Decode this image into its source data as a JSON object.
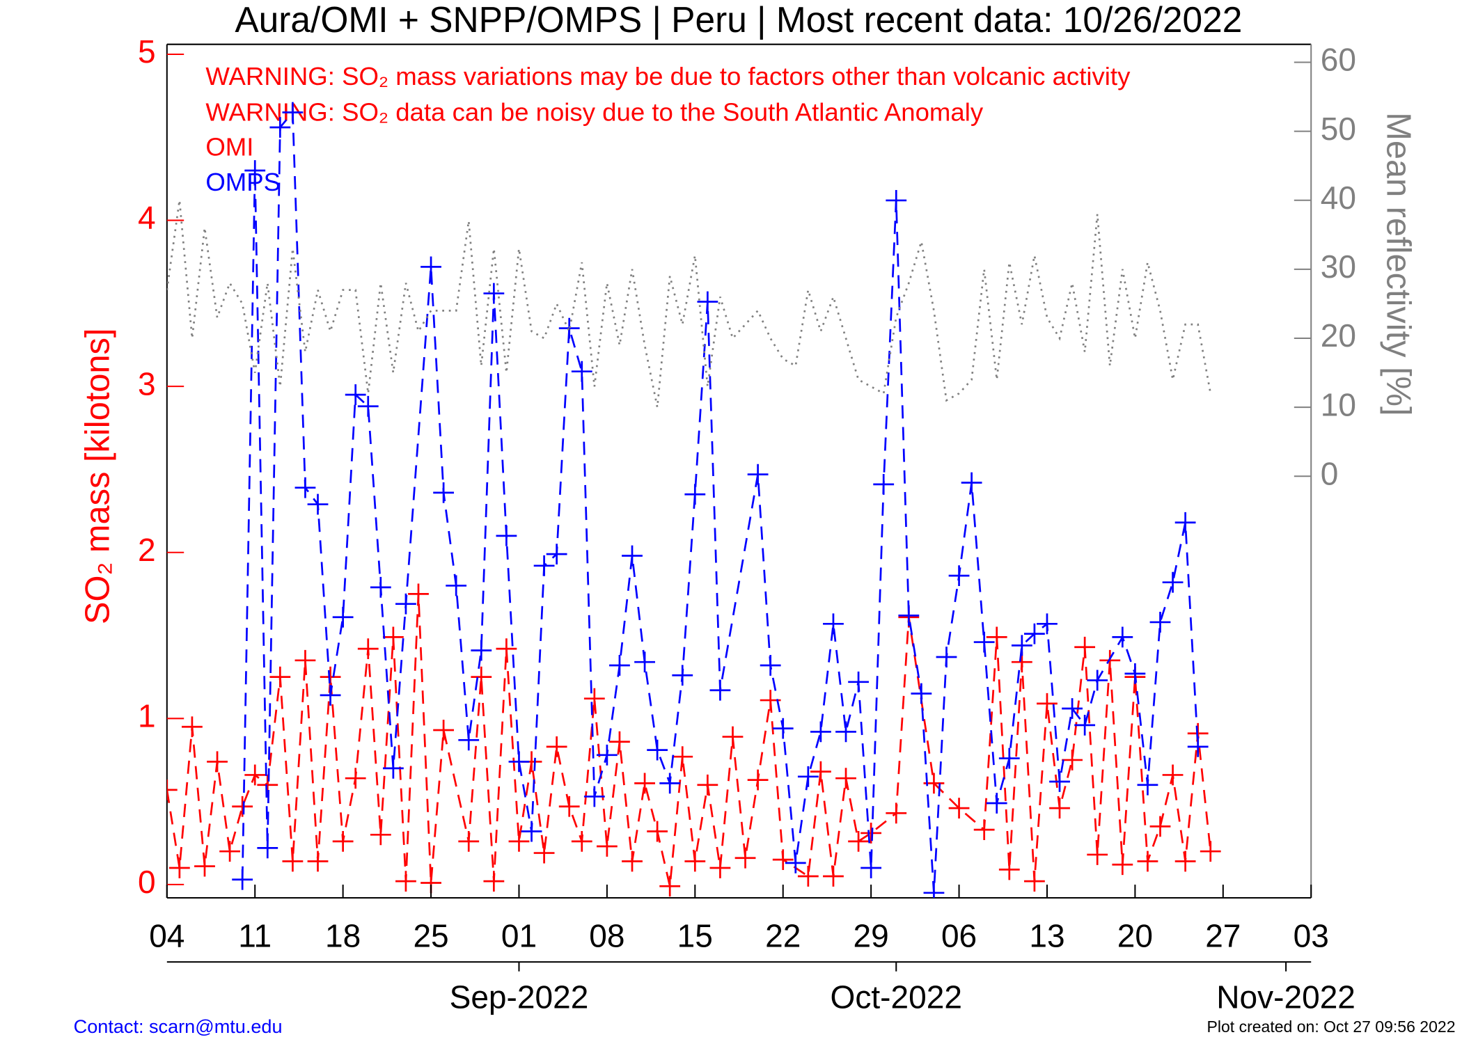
{
  "chart_data": {
    "type": "line",
    "title": "Aura/OMI + SNPP/OMPS | Peru | Most recent data: 10/26/2022",
    "annotations": [
      "WARNING: SO₂ mass variations may be due to factors other than volcanic activity",
      "WARNING: SO₂ data can be noisy due to the South Atlantic Anomaly"
    ],
    "ylabel": "SO₂ mass [kilotons]",
    "y2label": "Mean reflectivity [%]",
    "xlim": [
      "2022-08-04",
      "2022-11-03"
    ],
    "xticks": [
      {
        "value": "2022-08-04",
        "label": "04"
      },
      {
        "value": "2022-08-11",
        "label": "11"
      },
      {
        "value": "2022-08-18",
        "label": "18"
      },
      {
        "value": "2022-08-25",
        "label": "25"
      },
      {
        "value": "2022-09-01",
        "label": "01"
      },
      {
        "value": "2022-09-08",
        "label": "08"
      },
      {
        "value": "2022-09-15",
        "label": "15"
      },
      {
        "value": "2022-09-22",
        "label": "22"
      },
      {
        "value": "2022-09-29",
        "label": "29"
      },
      {
        "value": "2022-10-06",
        "label": "06"
      },
      {
        "value": "2022-10-13",
        "label": "13"
      },
      {
        "value": "2022-10-20",
        "label": "20"
      },
      {
        "value": "2022-10-27",
        "label": "27"
      },
      {
        "value": "2022-11-03",
        "label": "03"
      }
    ],
    "month_ticks": [
      {
        "value": "2022-09-01",
        "label": "Sep-2022"
      },
      {
        "value": "2022-10-01",
        "label": "Oct-2022"
      },
      {
        "value": "2022-11-01",
        "label": "Nov-2022"
      }
    ],
    "ylim": [
      -0.08,
      5.06
    ],
    "yticks": [
      0,
      1,
      2,
      3,
      4,
      5
    ],
    "y2lim": [
      -61.1,
      62.6
    ],
    "y2ticks": [
      0,
      10,
      20,
      30,
      40,
      50,
      60
    ],
    "series": [
      {
        "name": "OMI",
        "color": "#ff0000",
        "marker": "+",
        "line_style": "dashed",
        "x": [
          "2022-08-04",
          "2022-08-05",
          "2022-08-06",
          "2022-08-07",
          "2022-08-08",
          "2022-08-09",
          "2022-08-10",
          "2022-08-11",
          "2022-08-12",
          "2022-08-13",
          "2022-08-14",
          "2022-08-15",
          "2022-08-16",
          "2022-08-17",
          "2022-08-18",
          "2022-08-19",
          "2022-08-20",
          "2022-08-21",
          "2022-08-22",
          "2022-08-23",
          "2022-08-24",
          "2022-08-25",
          "2022-08-26",
          "2022-08-28",
          "2022-08-29",
          "2022-08-30",
          "2022-08-31",
          "2022-09-01",
          "2022-09-02",
          "2022-09-03",
          "2022-09-04",
          "2022-09-05",
          "2022-09-06",
          "2022-09-07",
          "2022-09-08",
          "2022-09-09",
          "2022-09-10",
          "2022-09-11",
          "2022-09-12",
          "2022-09-13",
          "2022-09-14",
          "2022-09-15",
          "2022-09-16",
          "2022-09-17",
          "2022-09-18",
          "2022-09-19",
          "2022-09-20",
          "2022-09-21",
          "2022-09-22",
          "2022-09-24",
          "2022-09-25",
          "2022-09-26",
          "2022-09-27",
          "2022-09-28",
          "2022-09-29",
          "2022-10-01",
          "2022-10-02",
          "2022-10-04",
          "2022-10-06",
          "2022-10-08",
          "2022-10-09",
          "2022-10-10",
          "2022-10-11",
          "2022-10-12",
          "2022-10-13",
          "2022-10-14",
          "2022-10-15",
          "2022-10-16",
          "2022-10-17",
          "2022-10-18",
          "2022-10-19",
          "2022-10-20",
          "2022-10-21",
          "2022-10-22",
          "2022-10-23",
          "2022-10-24",
          "2022-10-25",
          "2022-10-26"
        ],
        "values": [
          0.57,
          0.1,
          0.95,
          0.11,
          0.74,
          0.2,
          0.47,
          0.66,
          0.6,
          1.25,
          0.14,
          1.35,
          0.14,
          1.25,
          0.26,
          0.64,
          1.42,
          0.3,
          1.49,
          0.02,
          1.75,
          0.01,
          0.93,
          0.26,
          1.25,
          0.02,
          1.42,
          0.26,
          0.74,
          0.19,
          0.83,
          0.47,
          0.26,
          1.12,
          0.23,
          0.86,
          0.14,
          0.61,
          0.32,
          -0.01,
          0.77,
          0.14,
          0.6,
          0.1,
          0.89,
          0.16,
          0.63,
          1.11,
          0.15,
          0.05,
          0.68,
          0.05,
          0.64,
          0.26,
          0.31,
          0.43,
          1.61,
          0.61,
          0.46,
          0.33,
          1.49,
          0.09,
          1.34,
          0.02,
          1.09,
          0.46,
          0.75,
          1.43,
          0.18,
          1.35,
          0.12,
          1.25,
          0.14,
          0.35,
          0.66,
          0.14,
          0.91,
          0.2
        ]
      },
      {
        "name": "OMPS",
        "color": "#0000ff",
        "marker": "+",
        "line_style": "dashed",
        "x": [
          "2022-08-10",
          "2022-08-11",
          "2022-08-12",
          "2022-08-13",
          "2022-08-14",
          "2022-08-15",
          "2022-08-16",
          "2022-08-17",
          "2022-08-18",
          "2022-08-19",
          "2022-08-20",
          "2022-08-21",
          "2022-08-22",
          "2022-08-23",
          "2022-08-25",
          "2022-08-26",
          "2022-08-27",
          "2022-08-28",
          "2022-08-29",
          "2022-08-30",
          "2022-08-31",
          "2022-09-01",
          "2022-09-02",
          "2022-09-03",
          "2022-09-04",
          "2022-09-05",
          "2022-09-06",
          "2022-09-07",
          "2022-09-08",
          "2022-09-09",
          "2022-09-10",
          "2022-09-11",
          "2022-09-12",
          "2022-09-13",
          "2022-09-14",
          "2022-09-15",
          "2022-09-16",
          "2022-09-17",
          "2022-09-20",
          "2022-09-21",
          "2022-09-22",
          "2022-09-23",
          "2022-09-24",
          "2022-09-25",
          "2022-09-26",
          "2022-09-27",
          "2022-09-28",
          "2022-09-29",
          "2022-09-30",
          "2022-10-01",
          "2022-10-02",
          "2022-10-03",
          "2022-10-04",
          "2022-10-05",
          "2022-10-06",
          "2022-10-07",
          "2022-10-08",
          "2022-10-09",
          "2022-10-10",
          "2022-10-11",
          "2022-10-12",
          "2022-10-13",
          "2022-10-14",
          "2022-10-15",
          "2022-10-16",
          "2022-10-17",
          "2022-10-19",
          "2022-10-20",
          "2022-10-21",
          "2022-10-22",
          "2022-10-23",
          "2022-10-24",
          "2022-10-25"
        ],
        "values": [
          0.03,
          4.3,
          0.22,
          4.56,
          4.65,
          2.39,
          2.29,
          1.14,
          1.61,
          2.95,
          2.88,
          1.79,
          0.7,
          1.69,
          3.72,
          2.36,
          1.8,
          0.87,
          1.41,
          3.56,
          2.1,
          0.74,
          0.32,
          1.92,
          1.99,
          3.35,
          3.09,
          0.53,
          0.78,
          1.32,
          1.98,
          1.34,
          0.81,
          0.61,
          1.26,
          2.35,
          3.51,
          1.17,
          2.47,
          1.32,
          0.94,
          0.13,
          0.65,
          0.92,
          1.57,
          0.92,
          1.22,
          0.1,
          2.41,
          4.12,
          1.62,
          1.15,
          -0.05,
          1.37,
          1.86,
          2.42,
          1.46,
          0.49,
          0.76,
          1.44,
          1.51,
          1.57,
          0.62,
          1.06,
          0.96,
          1.23,
          1.49,
          1.27,
          0.6,
          1.58,
          1.82,
          2.18,
          0.83
        ]
      },
      {
        "axis": "y2",
        "color": "#808080",
        "line_style": "dotted",
        "x": [
          "2022-08-04",
          "2022-08-05",
          "2022-08-06",
          "2022-08-07",
          "2022-08-08",
          "2022-08-09",
          "2022-08-10",
          "2022-08-11",
          "2022-08-12",
          "2022-08-13",
          "2022-08-14",
          "2022-08-15",
          "2022-08-16",
          "2022-08-17",
          "2022-08-18",
          "2022-08-19",
          "2022-08-20",
          "2022-08-21",
          "2022-08-22",
          "2022-08-23",
          "2022-08-24",
          "2022-08-25",
          "2022-08-26",
          "2022-08-27",
          "2022-08-28",
          "2022-08-29",
          "2022-08-30",
          "2022-08-31",
          "2022-09-01",
          "2022-09-02",
          "2022-09-03",
          "2022-09-04",
          "2022-09-05",
          "2022-09-06",
          "2022-09-07",
          "2022-09-08",
          "2022-09-09",
          "2022-09-10",
          "2022-09-11",
          "2022-09-12",
          "2022-09-13",
          "2022-09-14",
          "2022-09-15",
          "2022-09-16",
          "2022-09-17",
          "2022-09-18",
          "2022-09-19",
          "2022-09-20",
          "2022-09-21",
          "2022-09-22",
          "2022-09-23",
          "2022-09-24",
          "2022-09-25",
          "2022-09-26",
          "2022-09-27",
          "2022-09-28",
          "2022-09-29",
          "2022-09-30",
          "2022-10-01",
          "2022-10-02",
          "2022-10-03",
          "2022-10-04",
          "2022-10-05",
          "2022-10-06",
          "2022-10-07",
          "2022-10-08",
          "2022-10-09",
          "2022-10-10",
          "2022-10-11",
          "2022-10-12",
          "2022-10-13",
          "2022-10-14",
          "2022-10-15",
          "2022-10-16",
          "2022-10-17",
          "2022-10-18",
          "2022-10-19",
          "2022-10-20",
          "2022-10-21",
          "2022-10-22",
          "2022-10-23",
          "2022-10-24",
          "2022-10-25",
          "2022-10-26"
        ],
        "values": [
          27,
          40,
          20,
          36,
          23,
          28,
          25,
          15,
          28,
          13,
          33,
          18,
          27,
          21,
          27,
          27,
          12,
          28,
          15,
          28,
          21,
          24,
          24,
          24,
          37,
          16,
          33,
          15,
          33,
          21,
          20,
          25,
          21,
          31,
          13,
          28,
          19,
          30,
          19,
          10,
          29,
          22,
          32,
          13,
          26,
          20,
          22,
          24,
          20,
          17,
          16,
          27,
          21,
          26,
          20,
          14,
          13,
          12,
          23,
          28,
          34,
          24,
          11,
          12,
          14,
          30,
          14,
          31,
          22,
          32,
          23,
          20,
          28,
          18,
          38,
          16,
          30,
          20,
          31,
          24,
          14,
          22,
          22,
          12
        ]
      }
    ],
    "footer_left": "Contact: scarn@mtu.edu",
    "footer_right": "Plot created on: Oct 27 09:56 2022"
  }
}
